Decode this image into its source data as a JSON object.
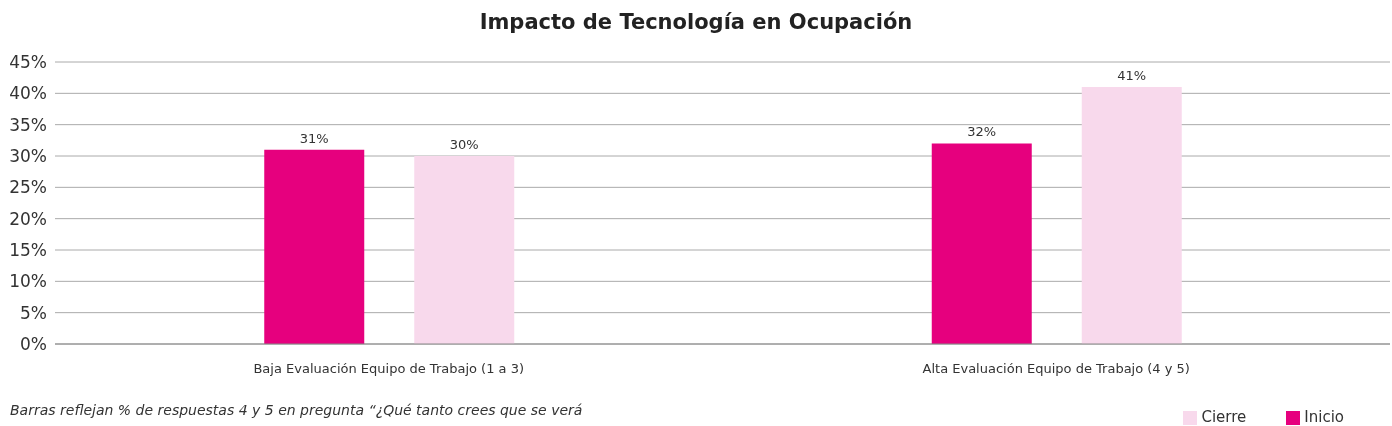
{
  "chart_data": {
    "type": "bar",
    "title": "Impacto de Tecnología en Ocupación",
    "categories": [
      "Baja Evaluación Equipo de Trabajo (1 a 3)",
      "Alta Evaluación Equipo de Trabajo (4 y 5)"
    ],
    "series": [
      {
        "name": "Inicio",
        "color": "#e6007e",
        "values": [
          31,
          32
        ],
        "value_labels": [
          "31%",
          "32%"
        ]
      },
      {
        "name": "Cierre",
        "color": "#f8d9ec",
        "values": [
          30,
          41
        ],
        "value_labels": [
          "30%",
          "41%"
        ]
      }
    ],
    "ylim": [
      0,
      45
    ],
    "yticks": [
      {
        "value": 0,
        "label": "0%"
      },
      {
        "value": 5,
        "label": "5%"
      },
      {
        "value": 10,
        "label": "10%"
      },
      {
        "value": 15,
        "label": "15%"
      },
      {
        "value": 20,
        "label": "20%"
      },
      {
        "value": 25,
        "label": "25%"
      },
      {
        "value": 30,
        "label": "30%"
      },
      {
        "value": 35,
        "label": "35%"
      },
      {
        "value": 40,
        "label": "40%"
      },
      {
        "value": 45,
        "label": "45%"
      }
    ],
    "grid": "y",
    "legend": "bottom right",
    "annotations": [
      "Barras reflejan % de respuestas 4 y 5 en pregunta “¿Qué tanto crees que se verá"
    ]
  }
}
